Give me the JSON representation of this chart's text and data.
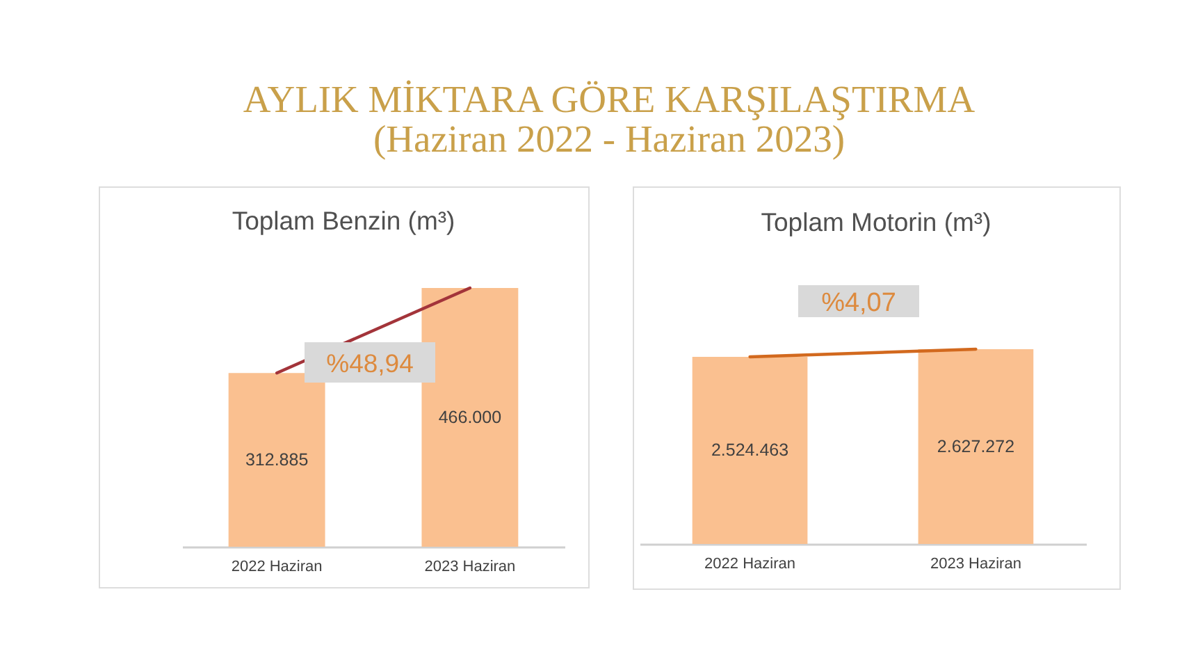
{
  "chart_data": [
    {
      "type": "other",
      "title": "AYLIK MİKTARA GÖRE KARŞILAŞTIRMA",
      "subtitle": "(Haziran 2022 - Haziran 2023)"
    },
    {
      "type": "bar",
      "title": "Toplam Benzin (m³)",
      "categories": [
        "2022 Haziran",
        "2023 Haziran"
      ],
      "tick_labels": "x",
      "annotations": [
        "%48,94"
      ],
      "series": [
        {
          "type": "bar",
          "color": "#fac090",
          "values": [
            312885,
            466000
          ],
          "value_labels": [
            "312.885",
            "466.000"
          ]
        },
        {
          "type": "line",
          "color": "#a3343a",
          "line_style": "solid",
          "values": [
            312885,
            466000
          ]
        }
      ]
    },
    {
      "type": "bar",
      "title": "Toplam Motorin (m³)",
      "categories": [
        "2022 Haziran",
        "2023 Haziran"
      ],
      "tick_labels": "x",
      "annotations": [
        "%4,07"
      ],
      "series": [
        {
          "type": "bar",
          "color": "#fac090",
          "values": [
            2524463,
            2627272
          ],
          "value_labels": [
            "2.524.463",
            "2.627.272"
          ]
        },
        {
          "type": "line",
          "color": "#d2691e",
          "line_style": "solid",
          "values": [
            2524463,
            2627272
          ]
        }
      ]
    }
  ]
}
